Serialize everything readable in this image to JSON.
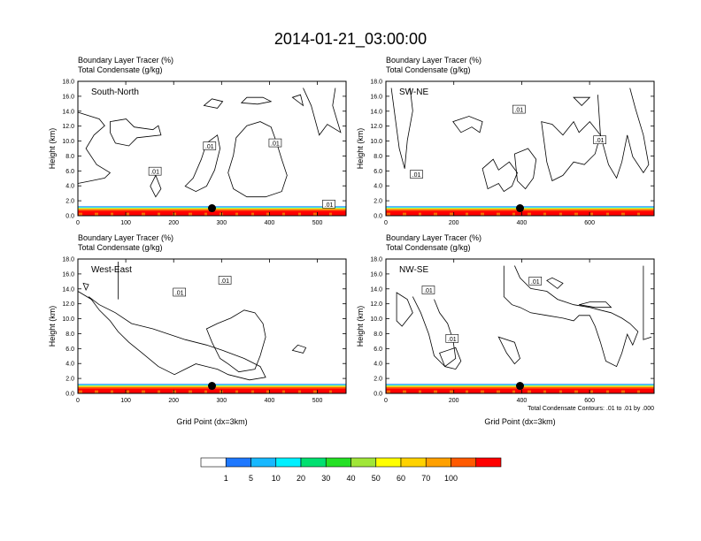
{
  "title": "2014-01-21_03:00:00",
  "colors": {
    "colorbar": [
      "#ffffff",
      "#1e78ff",
      "#18b8ff",
      "#00f0ff",
      "#00e070",
      "#24e024",
      "#a0e638",
      "#ffff00",
      "#ffd200",
      "#ffa000",
      "#ff5a00",
      "#ff0000"
    ],
    "frame": "#000000"
  },
  "chart_data": [
    {
      "type": "heatmap",
      "panel_label": "South-North",
      "titles": [
        "Boundary Layer Tracer   (%)",
        "Total Condensate   (g/kg)"
      ],
      "xlabel": "",
      "ylabel": "Height (km)",
      "xlim": [
        0,
        560
      ],
      "ylim": [
        0,
        18
      ],
      "xticks": [
        0,
        100,
        200,
        300,
        400,
        500
      ],
      "yticks": [
        "0.0",
        "2.0",
        "4.0",
        "6.0",
        "8.0",
        "10.0",
        "12.0",
        "14.0",
        "16.0",
        "18.0"
      ],
      "contour_labels": [
        {
          "text": ".01",
          "x": 161,
          "z": 5.9
        },
        {
          "text": ".01",
          "x": 275,
          "z": 9.3
        },
        {
          "text": ".01",
          "x": 412,
          "z": 9.7
        },
        {
          "text": ".01",
          "x": 524,
          "z": 1.5
        }
      ],
      "marker": {
        "x": 280,
        "z": 1.0
      },
      "boundary_layer_top_km": 1.2
    },
    {
      "type": "heatmap",
      "panel_label": "SW-NE",
      "titles": [
        "Boundary Layer Tracer   (%)",
        "Total Condensate   (g/kg)"
      ],
      "xlabel": "",
      "ylabel": "Height (km)",
      "xlim": [
        0,
        790
      ],
      "ylim": [
        0,
        18
      ],
      "xticks": [
        0,
        200,
        400,
        600
      ],
      "yticks": [
        "0.0",
        "2.0",
        "4.0",
        "6.0",
        "8.0",
        "10.0",
        "12.0",
        "14.0",
        "16.0",
        "18.0"
      ],
      "contour_labels": [
        {
          "text": ".01",
          "x": 392,
          "z": 14.2
        },
        {
          "text": ".01",
          "x": 630,
          "z": 10.1
        },
        {
          "text": ".01",
          "x": 90,
          "z": 5.5
        }
      ],
      "marker": {
        "x": 395,
        "z": 1.0
      },
      "boundary_layer_top_km": 1.2
    },
    {
      "type": "heatmap",
      "panel_label": "West-East",
      "titles": [
        "Boundary Layer Tracer   (%)",
        "Total Condensate   (g/kg)"
      ],
      "xlabel": "Grid Point (dx=3km)",
      "ylabel": "Height (km)",
      "xlim": [
        0,
        560
      ],
      "ylim": [
        0,
        18
      ],
      "xticks": [
        0,
        100,
        200,
        300,
        400,
        500
      ],
      "yticks": [
        "0.0",
        "2.0",
        "4.0",
        "6.0",
        "8.0",
        "10.0",
        "12.0",
        "14.0",
        "16.0",
        "18.0"
      ],
      "contour_labels": [
        {
          "text": ".01",
          "x": 212,
          "z": 13.5
        },
        {
          "text": ".01",
          "x": 307,
          "z": 15.1
        }
      ],
      "marker": {
        "x": 280,
        "z": 1.0
      },
      "boundary_layer_top_km": 1.2
    },
    {
      "type": "heatmap",
      "panel_label": "NW-SE",
      "titles": [
        "Boundary Layer Tracer   (%)",
        "Total Condensate   (g/kg)"
      ],
      "xlabel": "Grid Point (dx=3km)",
      "ylabel": "Height (km)",
      "xlim": [
        0,
        790
      ],
      "ylim": [
        0,
        18
      ],
      "xticks": [
        0,
        200,
        400,
        600
      ],
      "yticks": [
        "0.0",
        "2.0",
        "4.0",
        "6.0",
        "8.0",
        "10.0",
        "12.0",
        "14.0",
        "16.0",
        "18.0"
      ],
      "contour_labels": [
        {
          "text": ".01",
          "x": 125,
          "z": 13.8
        },
        {
          "text": ".01",
          "x": 195,
          "z": 7.3
        },
        {
          "text": ".01",
          "x": 440,
          "z": 15.0
        }
      ],
      "marker": {
        "x": 395,
        "z": 1.0
      },
      "boundary_layer_top_km": 1.2,
      "footnote": "Total Condensate Contours: .01 to .01 by .000"
    }
  ],
  "colorbar": {
    "labels": [
      "1",
      "5",
      "10",
      "20",
      "30",
      "40",
      "50",
      "60",
      "70",
      "100"
    ]
  }
}
